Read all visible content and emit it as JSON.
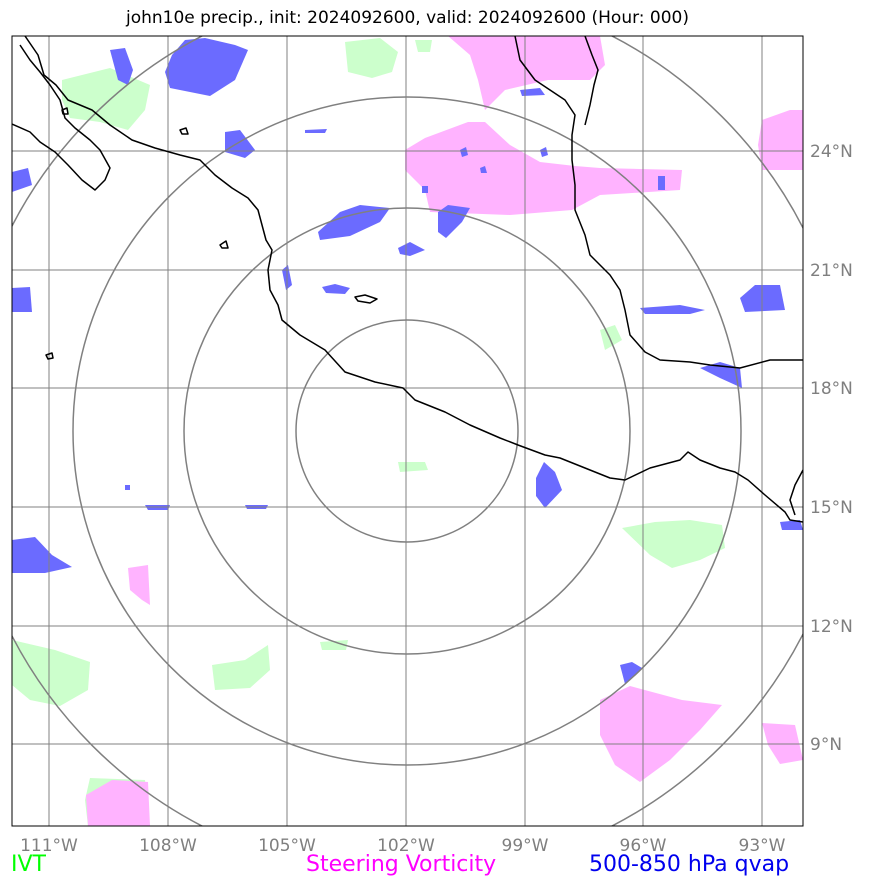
{
  "title": "john10e precip., init: 2024092600, valid: 2024092600 (Hour: 000)",
  "map": {
    "lon_ticks": [
      "111°W",
      "108°W",
      "105°W",
      "102°W",
      "99°W",
      "96°W",
      "93°W"
    ],
    "lat_ticks": [
      "24°N",
      "21°N",
      "18°N",
      "15°N",
      "12°N",
      "9°N"
    ],
    "range_rings": 4
  },
  "legend": {
    "ivt": {
      "label": "IVT",
      "color": "#00ff00"
    },
    "steering_vorticity": {
      "label": "Steering Vorticity",
      "color": "#ff00ff"
    },
    "qvap": {
      "label": "500-850 hPa qvap",
      "color": "#0000ee"
    }
  },
  "colors": {
    "ivt_fill": "#ccffcc",
    "vorticity_fill": "#ffb3ff",
    "qvap_fill": "#6b6bff",
    "grid": "#808080",
    "coast": "#000000"
  }
}
